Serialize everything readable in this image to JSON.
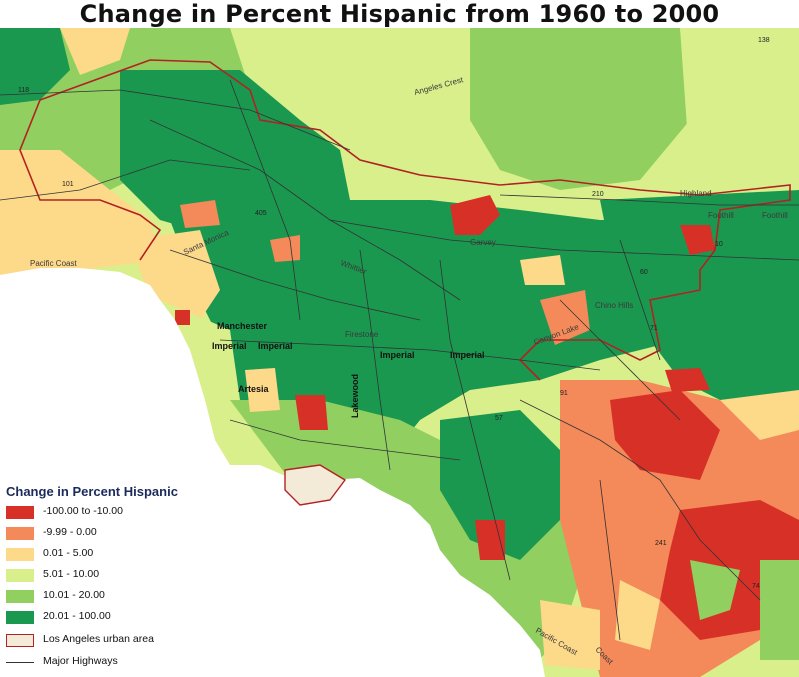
{
  "title": "Change in Percent Hispanic from 1960 to 2000",
  "legend": {
    "title": "Change in Percent Hispanic",
    "classes": [
      {
        "label": "-100.00 to -10.00",
        "color": "#d73027"
      },
      {
        "label": "-9.99 - 0.00",
        "color": "#f4895a"
      },
      {
        "label": "0.01 - 5.00",
        "color": "#fdd98a"
      },
      {
        "label": "5.01 - 10.00",
        "color": "#d9ef8b"
      },
      {
        "label": "10.01 - 20.00",
        "color": "#91cf60"
      },
      {
        "label": "20.01 - 100.00",
        "color": "#1a9850"
      }
    ],
    "urban_area": {
      "label": "Los Angeles urban area",
      "fill": "#f3ead8",
      "stroke": "#b22222"
    },
    "highways": {
      "label": "Major Highways",
      "color": "#333333"
    }
  },
  "labels": {
    "angeles_crest": "Angeles Crest",
    "highland": "Highland",
    "foothill_1": "Foothill",
    "foothill_2": "Foothill",
    "pacific_coast_nw": "Pacific Coast",
    "santa_monica": "Santa Monica",
    "manchester": "Manchester",
    "imperial_1": "Imperial",
    "imperial_2": "Imperial",
    "imperial_3": "Imperial",
    "imperial_4": "Imperial",
    "firestone": "Firestone",
    "artesia": "Artesia",
    "lakewood": "Lakewood",
    "chino_hills": "Chino Hills",
    "canyon": "Canyon Lake",
    "garvey": "Garvey",
    "whittier": "Whittier",
    "pacific_coast_s": "Pacific Coast",
    "coast": "Coast",
    "hwy_101": "101",
    "hwy_118": "118",
    "hwy_405": "405",
    "hwy_60": "60",
    "hwy_71": "71",
    "hwy_57": "57",
    "hwy_210": "210",
    "hwy_91": "91",
    "hwy_241": "241",
    "hwy_74": "74",
    "hwy_10": "10",
    "hwy_138": "138"
  }
}
